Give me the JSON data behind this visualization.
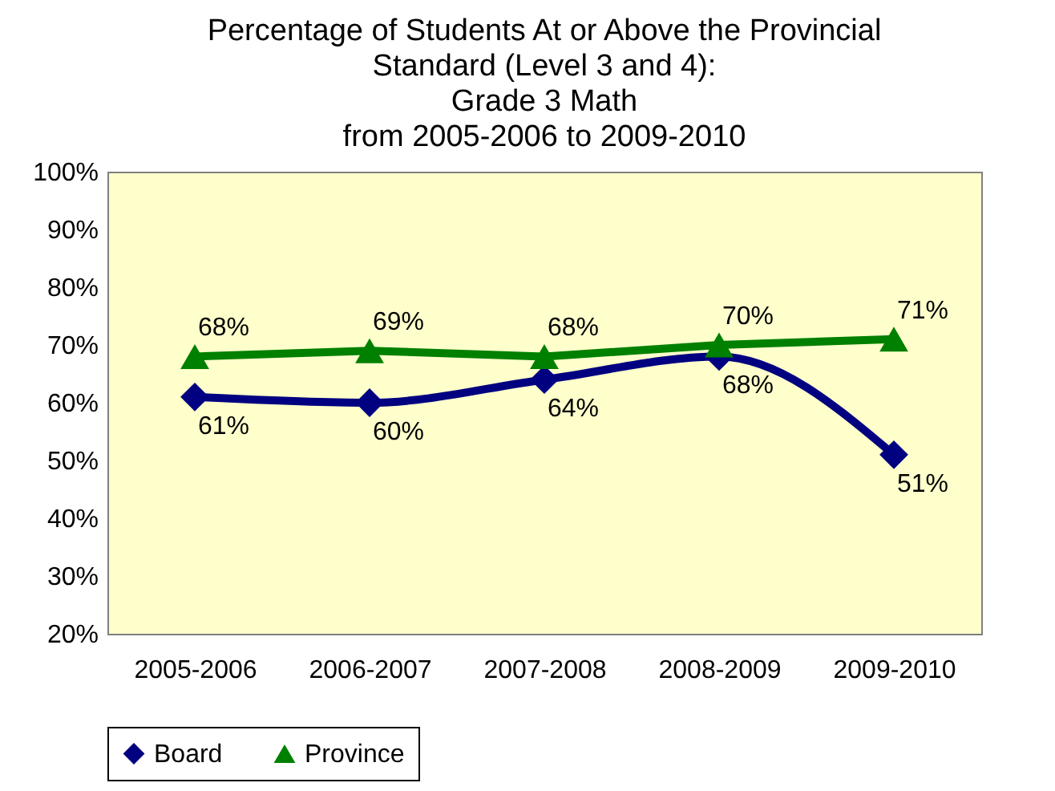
{
  "chart_data": {
    "type": "line",
    "title": "Percentage of Students At or Above the Provincial\nStandard (Level 3 and 4):\nGrade 3 Math\nfrom 2005-2006 to 2009-2010",
    "categories": [
      "2005-2006",
      "2006-2007",
      "2007-2008",
      "2008-2009",
      "2009-2010"
    ],
    "series": [
      {
        "name": "Board",
        "color": "#000080",
        "marker": "diamond",
        "values": [
          61,
          60,
          64,
          68,
          51
        ],
        "value_labels": [
          "61%",
          "60%",
          "64%",
          "68%",
          "51%"
        ]
      },
      {
        "name": "Province",
        "color": "#008000",
        "marker": "triangle",
        "values": [
          68,
          69,
          68,
          70,
          71
        ],
        "value_labels": [
          "68%",
          "69%",
          "68%",
          "70%",
          "71%"
        ]
      }
    ],
    "ylim": [
      20,
      100
    ],
    "yticks": [
      {
        "value": 20,
        "label": "20%"
      },
      {
        "value": 30,
        "label": "30%"
      },
      {
        "value": 40,
        "label": "40%"
      },
      {
        "value": 50,
        "label": "50%"
      },
      {
        "value": 60,
        "label": "60%"
      },
      {
        "value": 70,
        "label": "70%"
      },
      {
        "value": 80,
        "label": "80%"
      },
      {
        "value": 90,
        "label": "90%"
      },
      {
        "value": 100,
        "label": "100%"
      }
    ],
    "grid": false,
    "legend": "bottom",
    "line_style": "solid"
  }
}
